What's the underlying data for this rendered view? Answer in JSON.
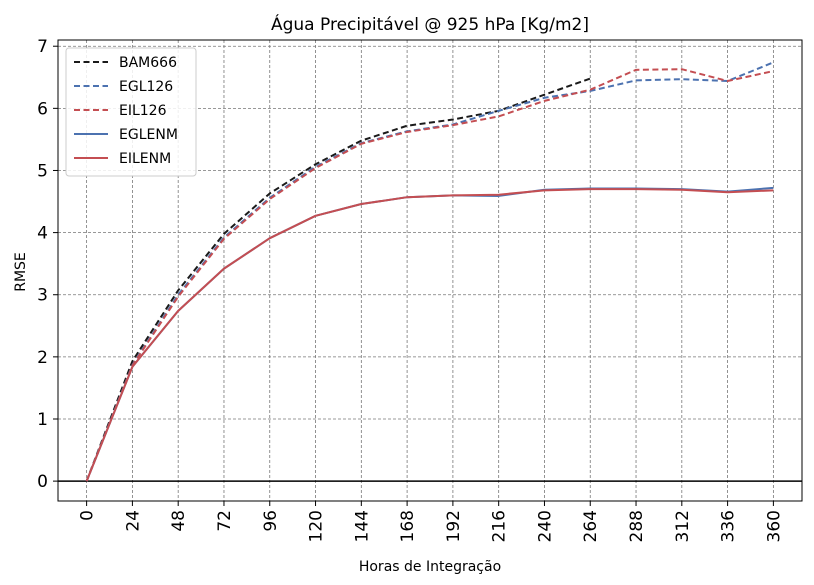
{
  "chart_data": {
    "type": "line",
    "title": "Água Precipitável @ 925 hPa [Kg/m2]",
    "xlabel": "Horas de Integração",
    "ylabel": "RMSE",
    "grid": true,
    "legend_position": "top-left",
    "xlim": [
      -15,
      375
    ],
    "ylim": [
      -0.32,
      7.1
    ],
    "x_ticks": [
      0,
      24,
      48,
      72,
      96,
      120,
      144,
      168,
      192,
      216,
      240,
      264,
      288,
      312,
      336,
      360
    ],
    "y_ticks": [
      0,
      1,
      2,
      3,
      4,
      5,
      6,
      7
    ],
    "series": [
      {
        "name": "BAM666",
        "color": "#1a1a1a",
        "style": "dashed",
        "x": [
          0,
          24,
          48,
          72,
          96,
          120,
          144,
          168,
          192,
          216,
          240,
          264
        ],
        "values": [
          0,
          1.93,
          3.07,
          3.98,
          4.63,
          5.1,
          5.48,
          5.72,
          5.82,
          5.96,
          6.22,
          6.48
        ]
      },
      {
        "name": "EGL126",
        "color": "#4c72b0",
        "style": "dashed",
        "x": [
          0,
          24,
          48,
          72,
          96,
          120,
          144,
          168,
          192,
          216,
          240,
          264,
          288,
          312,
          336,
          360
        ],
        "values": [
          0,
          1.87,
          3.0,
          3.92,
          4.56,
          5.06,
          5.44,
          5.63,
          5.74,
          5.96,
          6.17,
          6.28,
          6.45,
          6.47,
          6.44,
          6.74
        ]
      },
      {
        "name": "EIL126",
        "color": "#c44e52",
        "style": "dashed",
        "x": [
          0,
          24,
          48,
          72,
          96,
          120,
          144,
          168,
          192,
          216,
          240,
          264,
          288,
          312,
          336,
          360
        ],
        "values": [
          0,
          1.86,
          2.97,
          3.9,
          4.54,
          5.04,
          5.43,
          5.62,
          5.73,
          5.87,
          6.12,
          6.3,
          6.62,
          6.63,
          6.44,
          6.6
        ]
      },
      {
        "name": "EGLENM",
        "color": "#4c72b0",
        "style": "solid",
        "x": [
          0,
          24,
          48,
          72,
          96,
          120,
          144,
          168,
          192,
          216,
          240,
          264,
          288,
          312,
          336,
          360
        ],
        "values": [
          0,
          1.84,
          2.74,
          3.42,
          3.91,
          4.27,
          4.46,
          4.57,
          4.6,
          4.59,
          4.69,
          4.71,
          4.71,
          4.7,
          4.66,
          4.72
        ]
      },
      {
        "name": "EILENM",
        "color": "#c44e52",
        "style": "solid",
        "x": [
          0,
          24,
          48,
          72,
          96,
          120,
          144,
          168,
          192,
          216,
          240,
          264,
          288,
          312,
          336,
          360
        ],
        "values": [
          0,
          1.84,
          2.74,
          3.42,
          3.91,
          4.27,
          4.46,
          4.57,
          4.6,
          4.61,
          4.68,
          4.7,
          4.7,
          4.69,
          4.65,
          4.68
        ]
      }
    ]
  }
}
